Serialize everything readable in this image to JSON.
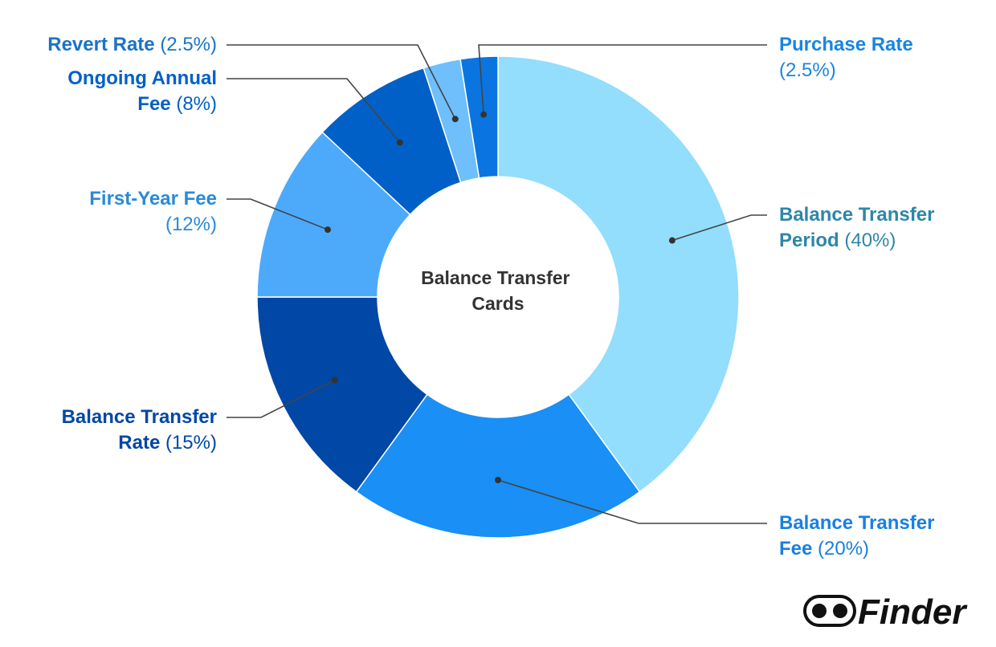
{
  "chart_data": {
    "type": "donut",
    "title": "Balance Transfer Cards",
    "categories": [
      "Balance Transfer Period",
      "Balance Transfer Fee",
      "Balance Transfer Rate",
      "First-Year Fee",
      "Ongoing Annual Fee",
      "Revert Rate",
      "Purchase Rate"
    ],
    "values": [
      40,
      20,
      15,
      12,
      8,
      2.5,
      2.5
    ],
    "value_labels": [
      "(40%)",
      "(20%)",
      "(15%)",
      "(12%)",
      "(8%)",
      "(2.5%)",
      "(2.5%)"
    ],
    "colors": [
      "#93ddfd",
      "#1a8ff5",
      "#0047a6",
      "#4daafb",
      "#0060c8",
      "#6ebffb",
      "#0a75e0"
    ],
    "label_colors": [
      "#2e86a8",
      "#1a7fe0",
      "#0047a6",
      "#2a8ad8",
      "#0060c8",
      "#1a73c8",
      "#1a85e0"
    ]
  },
  "brand": "Finder"
}
